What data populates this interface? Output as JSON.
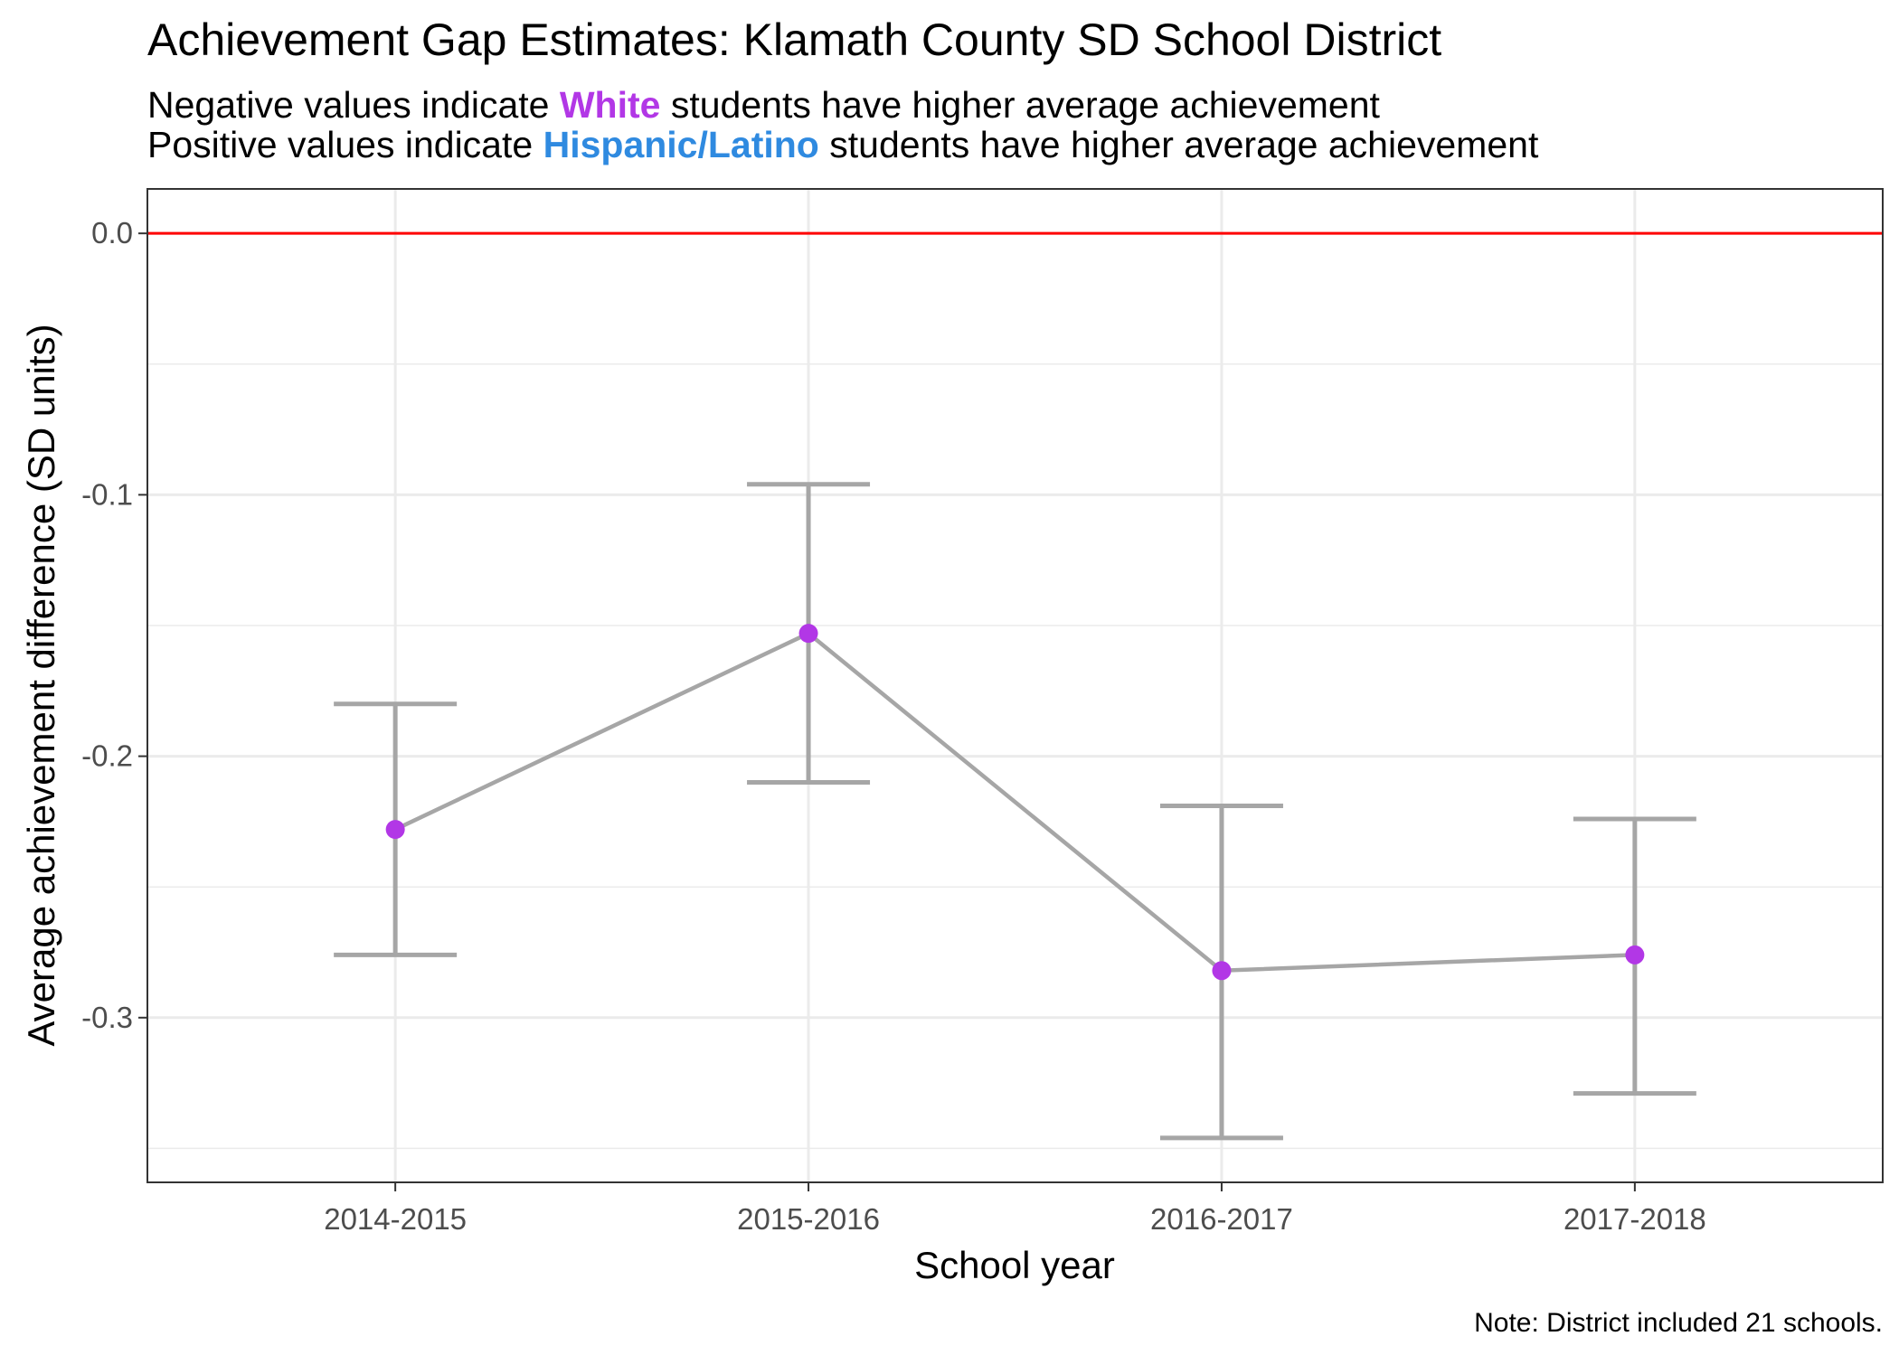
{
  "title": "Achievement Gap Estimates: Klamath County SD School District",
  "subtitle": {
    "line1": {
      "prefix": "Negative values indicate",
      "group": "White",
      "suffix": "students have higher average achievement"
    },
    "line2": {
      "prefix": "Positive values indicate",
      "group": "Hispanic/Latino",
      "suffix": "students have higher average achievement"
    }
  },
  "colors": {
    "white_group": "#b237e6",
    "hispanic_group": "#2f8ae0",
    "reference_line": "#ff0000",
    "series_line": "#a6a6a6",
    "point": "#b237e6"
  },
  "note": "Note: District included 21 schools.",
  "chart_data": {
    "type": "line",
    "xlabel": "School year",
    "ylabel": "Average achievement difference (SD units)",
    "categories": [
      "2014-2015",
      "2015-2016",
      "2016-2017",
      "2017-2018"
    ],
    "values": [
      -0.228,
      -0.153,
      -0.282,
      -0.276
    ],
    "error_low": [
      -0.276,
      -0.21,
      -0.346,
      -0.329
    ],
    "error_high": [
      -0.18,
      -0.096,
      -0.219,
      -0.224
    ],
    "y_ticks": [
      0.0,
      -0.1,
      -0.2,
      -0.3
    ],
    "y_tick_labels": [
      "0.0",
      "-0.1",
      "-0.2",
      "-0.3"
    ],
    "ylim": [
      -0.363,
      0.017
    ],
    "reference_line": 0,
    "grid": true,
    "legend": "none"
  }
}
